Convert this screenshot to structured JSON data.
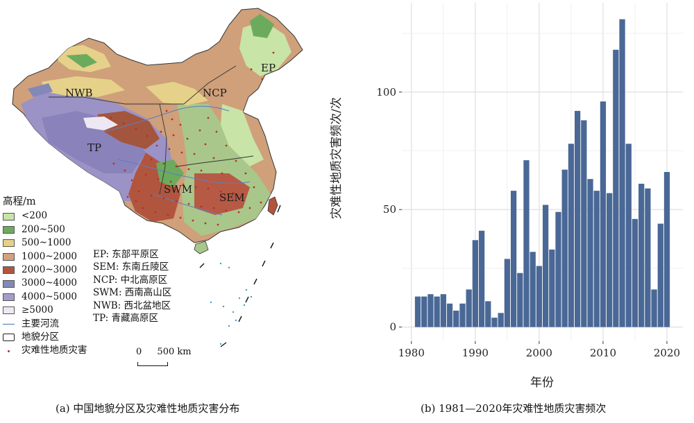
{
  "map": {
    "region_labels": [
      "NWB",
      "NCP",
      "EP",
      "TP",
      "SWM",
      "SEM"
    ],
    "legend_title": "高程/m",
    "elevation_classes": [
      {
        "label": "<200",
        "color": "#c8e4a6"
      },
      {
        "label": "200~500",
        "color": "#6cab5e"
      },
      {
        "label": "500~1000",
        "color": "#e6d18a"
      },
      {
        "label": "1000~2000",
        "color": "#d4a27e"
      },
      {
        "label": "2000~3000",
        "color": "#b2553e"
      },
      {
        "label": "3000~4000",
        "color": "#8488b8"
      },
      {
        "label": "4000~5000",
        "color": "#a69ccc"
      },
      {
        "label": "≥5000",
        "color": "#eee8f4"
      }
    ],
    "other_legend": {
      "river": "主要河流",
      "zone": "地貌分区",
      "hazard": "灾难性地质灾害"
    },
    "region_names": [
      "EP: 东部平原区",
      "SEM: 东南丘陵区",
      "NCP: 中北高原区",
      "SWM: 西南高山区",
      "NWB: 西北盆地区",
      "TP: 青藏高原区"
    ],
    "scale": {
      "zero": "0",
      "distance": "500 km"
    }
  },
  "captions": {
    "a": "(a) 中国地貌分区及灾难性地质灾害分布",
    "b": "(b) 1981—2020年灾难性地质灾害频次"
  },
  "chart_data": {
    "type": "bar",
    "xlabel": "年份",
    "ylabel": "灾难性地质灾害频次/次",
    "x": [
      1981,
      1982,
      1983,
      1984,
      1985,
      1986,
      1987,
      1988,
      1989,
      1990,
      1991,
      1992,
      1993,
      1994,
      1995,
      1996,
      1997,
      1998,
      1999,
      2000,
      2001,
      2002,
      2003,
      2004,
      2005,
      2006,
      2007,
      2008,
      2009,
      2010,
      2011,
      2012,
      2013,
      2014,
      2015,
      2016,
      2017,
      2018,
      2019,
      2020
    ],
    "values": [
      13,
      13,
      14,
      13,
      14,
      10,
      7,
      10,
      16,
      37,
      41,
      11,
      4,
      6,
      29,
      58,
      23,
      71,
      32,
      26,
      52,
      33,
      49,
      67,
      78,
      92,
      88,
      63,
      58,
      96,
      57,
      118,
      131,
      78,
      46,
      61,
      59,
      16,
      44,
      66
    ],
    "xlim": [
      1978.5,
      2022.5
    ],
    "ylim": [
      -6,
      138
    ],
    "xticks": [
      1980,
      1990,
      2000,
      2010,
      2020
    ],
    "yticks": [
      0,
      50,
      100
    ],
    "grid": true,
    "bar_color": "#4a6896"
  }
}
